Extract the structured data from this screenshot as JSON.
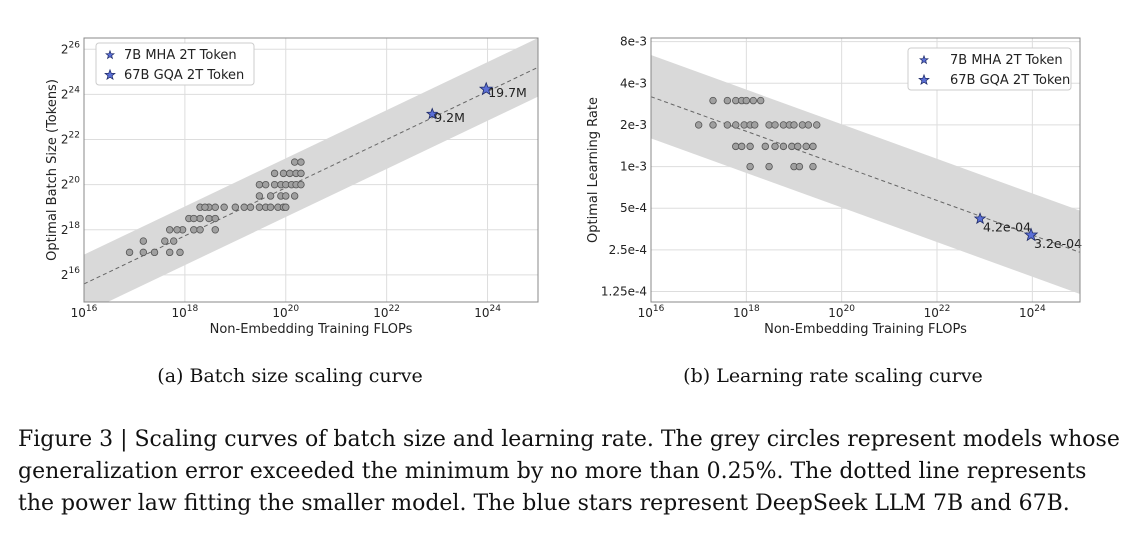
{
  "chart_data": [
    {
      "type": "scatter",
      "xlabel": "Non-Embedding Training FLOPs",
      "ylabel": "Optimal Batch Size (Tokens)",
      "x_scale": "log10",
      "y_scale": "log2",
      "xlim": [
        1e+16,
        1e+25
      ],
      "ylim_log2": [
        14.8,
        26.5
      ],
      "x_tick_exponents": [
        16,
        18,
        20,
        22,
        24
      ],
      "y_tick_exponents": [
        16,
        18,
        20,
        22,
        24,
        26
      ],
      "grid": true,
      "legend_placement": "top-left",
      "legend": [
        "7B MHA 2T Token",
        "67B GQA 2T Token"
      ],
      "fit_band": true,
      "fit_line": {
        "x": [
          1e+16,
          1e+25
        ],
        "y_log2": [
          15.6,
          25.2
        ]
      },
      "band_halfwidth_log2": 1.3,
      "series": [
        {
          "marker": "circle",
          "points": [
            [
              8e+16,
              17
            ],
            [
              1.5e+17,
              17
            ],
            [
              2.5e+17,
              17
            ],
            [
              5e+17,
              17
            ],
            [
              8e+17,
              17
            ],
            [
              1.5e+17,
              17.5
            ],
            [
              4e+17,
              17.5
            ],
            [
              6e+17,
              17.5
            ],
            [
              5e+17,
              18
            ],
            [
              9e+17,
              18
            ],
            [
              1.5e+18,
              18
            ],
            [
              2e+18,
              18
            ],
            [
              4e+18,
              18
            ],
            [
              7e+17,
              18
            ],
            [
              2e+18,
              18.5
            ],
            [
              3e+18,
              18.5
            ],
            [
              4e+18,
              18.5
            ],
            [
              1.2e+18,
              18.5
            ],
            [
              1.5e+18,
              18.5
            ],
            [
              2e+18,
              19
            ],
            [
              3e+18,
              19
            ],
            [
              4e+18,
              19
            ],
            [
              6e+18,
              19
            ],
            [
              1e+19,
              19
            ],
            [
              1.5e+19,
              19
            ],
            [
              2e+19,
              19
            ],
            [
              3e+19,
              19
            ],
            [
              4e+19,
              19
            ],
            [
              5e+19,
              19
            ],
            [
              7e+19,
              19
            ],
            [
              9e+19,
              19
            ],
            [
              2.5e+18,
              19
            ],
            [
              1e+20,
              19
            ],
            [
              3e+19,
              19.5
            ],
            [
              5e+19,
              19.5
            ],
            [
              8e+19,
              19.5
            ],
            [
              1e+20,
              19.5
            ],
            [
              1.5e+20,
              19.5
            ],
            [
              3e+19,
              20
            ],
            [
              4e+19,
              20
            ],
            [
              6e+19,
              20
            ],
            [
              8e+19,
              20
            ],
            [
              1e+20,
              20
            ],
            [
              1.3e+20,
              20
            ],
            [
              1.6e+20,
              20
            ],
            [
              2e+20,
              20
            ],
            [
              6e+19,
              20.5
            ],
            [
              9e+19,
              20.5
            ],
            [
              1.2e+20,
              20.5
            ],
            [
              1.6e+20,
              20.5
            ],
            [
              2e+20,
              20.5
            ],
            [
              1.5e+20,
              21
            ],
            [
              2e+20,
              21
            ]
          ]
        },
        {
          "name": "7B MHA 2T Token",
          "marker": "star",
          "x": 8e+22,
          "y_log2": 23.13,
          "label": "9.2M"
        },
        {
          "name": "67B GQA 2T Token",
          "marker": "star",
          "x": 9.4e+23,
          "y_log2": 24.23,
          "label": "19.7M"
        }
      ]
    },
    {
      "type": "scatter",
      "xlabel": "Non-Embedding Training FLOPs",
      "ylabel": "Optimal Learning Rate",
      "x_scale": "log10",
      "y_scale": "log2",
      "xlim": [
        1e+16,
        1e+25
      ],
      "ylim": [
        0.000105,
        0.0085
      ],
      "x_tick_exponents": [
        16,
        18,
        20,
        22,
        24
      ],
      "y_ticks": [
        0.000125,
        0.00025,
        0.0005,
        0.001,
        0.002,
        0.004,
        0.008
      ],
      "y_tick_labels": [
        "1.25e-4",
        "2.5e-4",
        "5e-4",
        "1e-3",
        "2e-3",
        "4e-3",
        "8e-3"
      ],
      "grid": true,
      "legend_placement": "top-right",
      "legend": [
        "7B MHA 2T Token",
        "67B GQA 2T Token"
      ],
      "fit_band": true,
      "fit_line": {
        "x": [
          1e+16,
          1e+25
        ],
        "y": [
          0.0032,
          0.00024
        ]
      },
      "band_factor": 2.0,
      "series": [
        {
          "marker": "circle",
          "points": [
            [
              1e+17,
              0.002
            ],
            [
              2e+17,
              0.002
            ],
            [
              4e+17,
              0.002
            ],
            [
              6e+17,
              0.002
            ],
            [
              9e+17,
              0.002
            ],
            [
              1.2e+18,
              0.002
            ],
            [
              1.5e+18,
              0.002
            ],
            [
              3e+18,
              0.002
            ],
            [
              4e+18,
              0.002
            ],
            [
              6e+18,
              0.002
            ],
            [
              8e+18,
              0.002
            ],
            [
              1e+19,
              0.002
            ],
            [
              1.5e+19,
              0.002
            ],
            [
              2e+19,
              0.002
            ],
            [
              3e+19,
              0.002
            ],
            [
              2e+17,
              0.003
            ],
            [
              4e+17,
              0.003
            ],
            [
              6e+17,
              0.003
            ],
            [
              8e+17,
              0.003
            ],
            [
              1e+18,
              0.003
            ],
            [
              1.4e+18,
              0.003
            ],
            [
              2e+18,
              0.003
            ],
            [
              6e+17,
              0.0014
            ],
            [
              8e+17,
              0.0014
            ],
            [
              1.2e+18,
              0.0014
            ],
            [
              2.5e+18,
              0.0014
            ],
            [
              4e+18,
              0.0014
            ],
            [
              6e+18,
              0.0014
            ],
            [
              9e+18,
              0.0014
            ],
            [
              1.2e+19,
              0.0014
            ],
            [
              1.8e+19,
              0.0014
            ],
            [
              2.5e+19,
              0.0014
            ],
            [
              1.2e+18,
              0.001
            ],
            [
              3e+18,
              0.001
            ],
            [
              1e+19,
              0.001
            ],
            [
              1.3e+19,
              0.001
            ],
            [
              2.5e+19,
              0.001
            ]
          ]
        },
        {
          "name": "7B MHA 2T Token",
          "marker": "star",
          "x": 8e+22,
          "y": 0.00042,
          "label": "4.2e-04"
        },
        {
          "name": "67B GQA 2T Token",
          "marker": "star",
          "x": 9.4e+23,
          "y": 0.00032,
          "label": "3.2e-04"
        }
      ]
    }
  ],
  "subcaptions": [
    "(a)  Batch size scaling curve",
    "(b)  Learning rate scaling curve"
  ],
  "caption_lines": [
    "Figure 3 | Scaling curves of batch size and learning rate. The grey circles represent models whose",
    "generalization error exceeded the minimum by no more than 0.25%. The dotted line represents",
    "the power law fitting the smaller model. The blue stars represent DeepSeek LLM 7B and 67B."
  ],
  "colors": {
    "band": "#d9d9d9",
    "grid": "#dddddd",
    "axes": "#888888",
    "circle_fill": "#a0a0a0",
    "circle_edge": "#555555",
    "star_fill": "#5b6fd6",
    "star_edge": "#1e2a66",
    "fit_line": "#666666"
  }
}
